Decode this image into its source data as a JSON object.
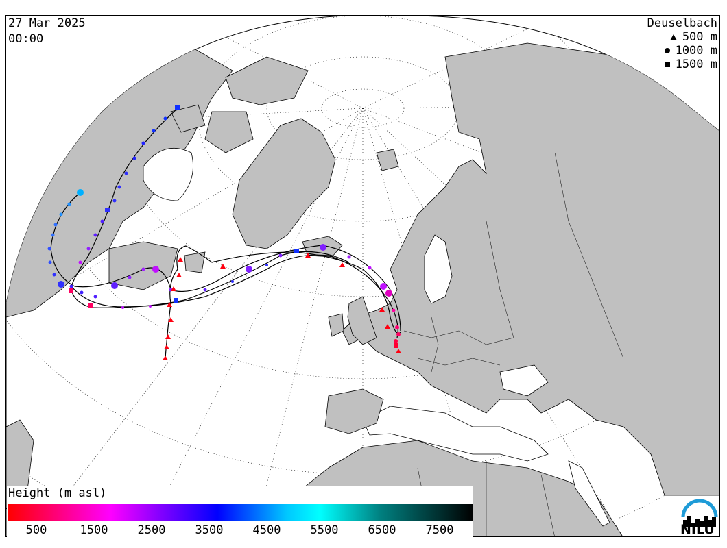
{
  "header": {
    "date": "27 Mar 2025",
    "time": "00:00"
  },
  "legend": {
    "station": "Deuselbach",
    "levels": [
      {
        "symbol": "triangle",
        "label": "500 m"
      },
      {
        "symbol": "circle",
        "label": "1000 m"
      },
      {
        "symbol": "square",
        "label": "1500 m"
      }
    ]
  },
  "height_scale": {
    "title": "Height (m asl)",
    "ticks": [
      "500",
      "1500",
      "2500",
      "3500",
      "4500",
      "5500",
      "6500",
      "7500"
    ],
    "colors": [
      "#ff0000",
      "#ff00ff",
      "#8000ff",
      "#0000ff",
      "#00c8ff",
      "#00ffff",
      "#008080",
      "#000000"
    ]
  },
  "logo": {
    "text": "NILU",
    "color": "#1e9bd7"
  },
  "map": {
    "land_color": "#c0c0c0",
    "ocean_color": "#ffffff",
    "trajectory_colors": {
      "500 m": "#ff0044",
      "1000 m": "#9020ff",
      "1500 m": "#3040ff"
    }
  }
}
